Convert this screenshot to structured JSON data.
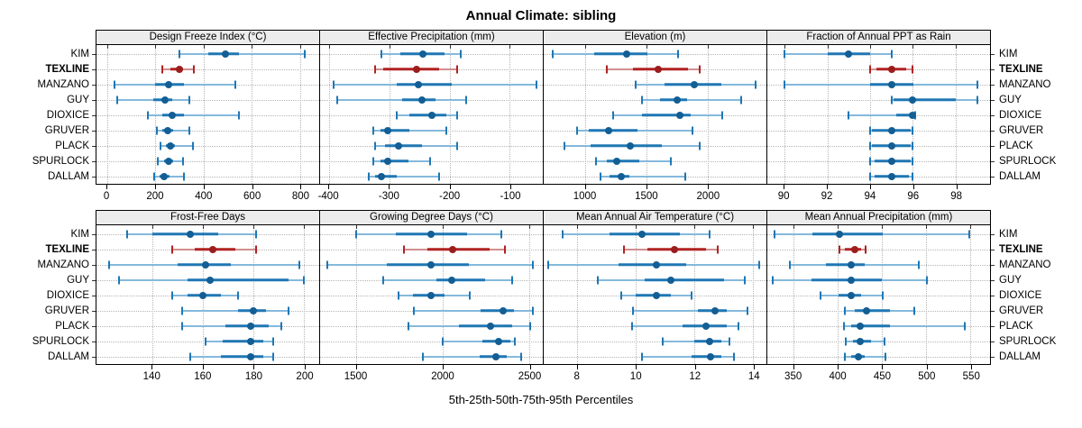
{
  "chart_data": {
    "type": "trellis-dotplot-interval",
    "title": "Annual Climate: sibling",
    "caption": "5th-25th-50th-75th-95th Percentiles",
    "percentile_labels": [
      "5th",
      "25th",
      "50th",
      "75th",
      "95th"
    ],
    "legend_position": "none",
    "grid": "dotted",
    "highlight_station": "TEXLINE",
    "stations": [
      "KIM",
      "TEXLINE",
      "MANZANO",
      "GUY",
      "DIOXICE",
      "GRUVER",
      "PLACK",
      "SPURLOCK",
      "DALLAM"
    ],
    "colors": {
      "normal_bar": "#1f77b4",
      "normal_whisker": "#85b9dc",
      "normal_dot": "#135e94",
      "highlight_bar": "#b22222",
      "highlight_whisker": "#d28f8e",
      "highlight_dot": "#9c1d1d",
      "strip_bg": "#ececec",
      "grid_line": "#b5b5b5"
    },
    "panels": [
      {
        "title": "Design Freeze Index (°C)",
        "row": 1,
        "xlim": [
          -45,
          880
        ],
        "ticks": [
          0,
          200,
          400,
          600,
          800
        ],
        "values": [
          [
            300,
            420,
            490,
            545,
            820
          ],
          [
            230,
            262,
            300,
            315,
            360
          ],
          [
            30,
            200,
            255,
            320,
            530
          ],
          [
            40,
            190,
            240,
            270,
            340
          ],
          [
            170,
            230,
            270,
            320,
            545
          ],
          [
            205,
            230,
            252,
            272,
            340
          ],
          [
            220,
            242,
            262,
            282,
            355
          ],
          [
            210,
            235,
            255,
            275,
            315
          ],
          [
            195,
            218,
            237,
            257,
            320
          ]
        ]
      },
      {
        "title": "Effective Precipitation (mm)",
        "row": 1,
        "xlim": [
          -415,
          -45
        ],
        "ticks": [
          -400,
          -300,
          -200,
          -100
        ],
        "values": [
          [
            -313,
            -282,
            -244,
            -208,
            -182
          ],
          [
            -323,
            -310,
            -255,
            -218,
            -187
          ],
          [
            -392,
            -287,
            -251,
            -197,
            -55
          ],
          [
            -387,
            -279,
            -246,
            -223,
            -172
          ],
          [
            -288,
            -267,
            -230,
            -205,
            -187
          ],
          [
            -326,
            -315,
            -303,
            -267,
            -205
          ],
          [
            -323,
            -307,
            -284,
            -246,
            -187
          ],
          [
            -326,
            -315,
            -303,
            -268,
            -232
          ],
          [
            -334,
            -323,
            -313,
            -288,
            -218
          ]
        ]
      },
      {
        "title": "Elevation (m)",
        "row": 1,
        "xlim": [
          660,
          2480
        ],
        "ticks": [
          1000,
          1500,
          2000
        ],
        "values": [
          [
            730,
            1070,
            1340,
            1510,
            1755
          ],
          [
            1175,
            1390,
            1595,
            1840,
            1935
          ],
          [
            1410,
            1650,
            1890,
            2110,
            2390
          ],
          [
            1460,
            1610,
            1750,
            1830,
            2270
          ],
          [
            1230,
            1460,
            1775,
            1860,
            2120
          ],
          [
            930,
            1030,
            1190,
            1425,
            1875
          ],
          [
            830,
            1040,
            1370,
            1625,
            1935
          ],
          [
            1090,
            1175,
            1260,
            1440,
            1700
          ],
          [
            1125,
            1200,
            1290,
            1360,
            1815
          ]
        ]
      },
      {
        "title": "Fraction of Annual PPT as Rain",
        "row": 1,
        "xlim": [
          89.2,
          99.6
        ],
        "ticks": [
          90,
          92,
          94,
          96,
          98
        ],
        "values": [
          [
            90,
            92,
            93,
            94,
            95
          ],
          [
            94,
            94.3,
            95,
            95.7,
            96
          ],
          [
            90,
            94,
            95,
            96,
            99
          ],
          [
            95,
            95.1,
            96,
            98,
            99
          ],
          [
            93,
            95.2,
            96,
            96,
            96.1
          ],
          [
            94,
            94.1,
            95,
            95.9,
            96
          ],
          [
            94,
            94.1,
            95,
            95.9,
            96
          ],
          [
            94,
            94.2,
            95,
            95.9,
            96
          ],
          [
            94,
            94.2,
            95,
            95.8,
            96
          ]
        ]
      },
      {
        "title": "Frost-Free Days",
        "row": 2,
        "xlim": [
          118,
          206
        ],
        "ticks": [
          140,
          160,
          180,
          200
        ],
        "values": [
          [
            130,
            140,
            155,
            166,
            181
          ],
          [
            148,
            157,
            164,
            173,
            181
          ],
          [
            123,
            150,
            161,
            171,
            198
          ],
          [
            127,
            154,
            163,
            194,
            200
          ],
          [
            148,
            154,
            160,
            167,
            174
          ],
          [
            152,
            174,
            180,
            185,
            194
          ],
          [
            152,
            169,
            179,
            186,
            191
          ],
          [
            161,
            168,
            179,
            184,
            188
          ],
          [
            155,
            167,
            179,
            184,
            188
          ]
        ]
      },
      {
        "title": "Growing Degree Days (°C)",
        "row": 2,
        "xlim": [
          1290,
          2580
        ],
        "ticks": [
          1500,
          2000,
          2500
        ],
        "values": [
          [
            1500,
            1730,
            1930,
            2140,
            2340
          ],
          [
            1775,
            1910,
            2060,
            2270,
            2360
          ],
          [
            1330,
            1675,
            1930,
            2150,
            2525
          ],
          [
            1655,
            1965,
            2055,
            2245,
            2405
          ],
          [
            1745,
            1830,
            1930,
            2010,
            2155
          ],
          [
            1835,
            2220,
            2350,
            2415,
            2520
          ],
          [
            1800,
            2095,
            2275,
            2400,
            2505
          ],
          [
            2000,
            2230,
            2325,
            2390,
            2420
          ],
          [
            1885,
            2215,
            2310,
            2370,
            2455
          ]
        ]
      },
      {
        "title": "Mean Annual Air Temperature (°C)",
        "row": 2,
        "xlim": [
          6.85,
          14.45
        ],
        "ticks": [
          8,
          10,
          12,
          14
        ],
        "values": [
          [
            7.5,
            9.1,
            10.2,
            11.5,
            12.5
          ],
          [
            9.6,
            10.4,
            11.3,
            12.4,
            12.8
          ],
          [
            7.0,
            9.4,
            10.7,
            11.7,
            14.2
          ],
          [
            8.7,
            10.3,
            11.2,
            13.0,
            13.7
          ],
          [
            9.5,
            10.0,
            10.7,
            11.2,
            11.9
          ],
          [
            9.9,
            12.1,
            12.7,
            13.1,
            13.8
          ],
          [
            9.85,
            11.6,
            12.4,
            13.1,
            13.5
          ],
          [
            10.9,
            12.0,
            12.5,
            12.9,
            13.2
          ],
          [
            10.2,
            11.9,
            12.55,
            12.9,
            13.35
          ]
        ]
      },
      {
        "title": "Mean Annual Precipitation (mm)",
        "row": 2,
        "xlim": [
          320,
          572
        ],
        "ticks": [
          350,
          400,
          450,
          500,
          550
        ],
        "values": [
          [
            328,
            371,
            402,
            451,
            549
          ],
          [
            402,
            408,
            419,
            426,
            431
          ],
          [
            345,
            386,
            415,
            430,
            491
          ],
          [
            326,
            370,
            415,
            450,
            501
          ],
          [
            380,
            401,
            415,
            426,
            451
          ],
          [
            408,
            419,
            432,
            459,
            486
          ],
          [
            407,
            415,
            425,
            459,
            543
          ],
          [
            409,
            417,
            425,
            437,
            453
          ],
          [
            408,
            415,
            423,
            430,
            454
          ]
        ]
      }
    ]
  }
}
